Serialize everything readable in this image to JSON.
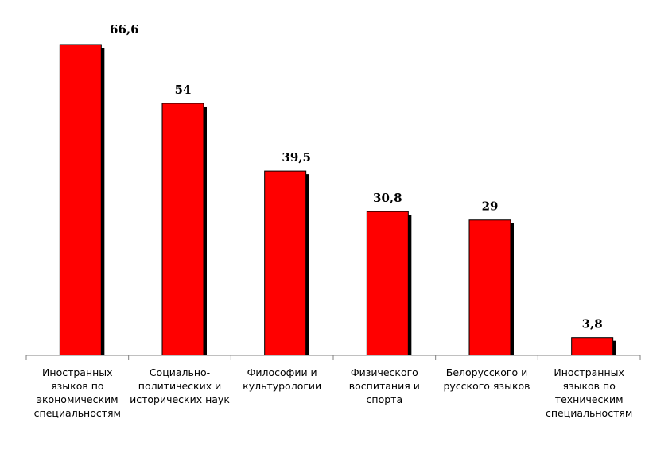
{
  "chart_data": {
    "type": "bar",
    "categories": [
      "Иностранных языков по экономическим специальностям",
      "Социально-политических и исторических наук",
      "Философии и культурологии",
      "Физического воспитания и спорта",
      "Белорусского и русского языков",
      "Иностранных языков по техническим специальностям"
    ],
    "values": [
      66.6,
      54,
      39.5,
      30.8,
      29,
      3.8
    ],
    "value_labels": [
      "66,6",
      "54",
      "39,5",
      "30,8",
      "29",
      "3,8"
    ],
    "title": "",
    "xlabel": "",
    "ylabel": "",
    "ylim": [
      0,
      70
    ],
    "colors": {
      "bar": "#ff0000",
      "shadow": "#000000",
      "axis": "#808080"
    },
    "grid": false,
    "legend": "none"
  }
}
